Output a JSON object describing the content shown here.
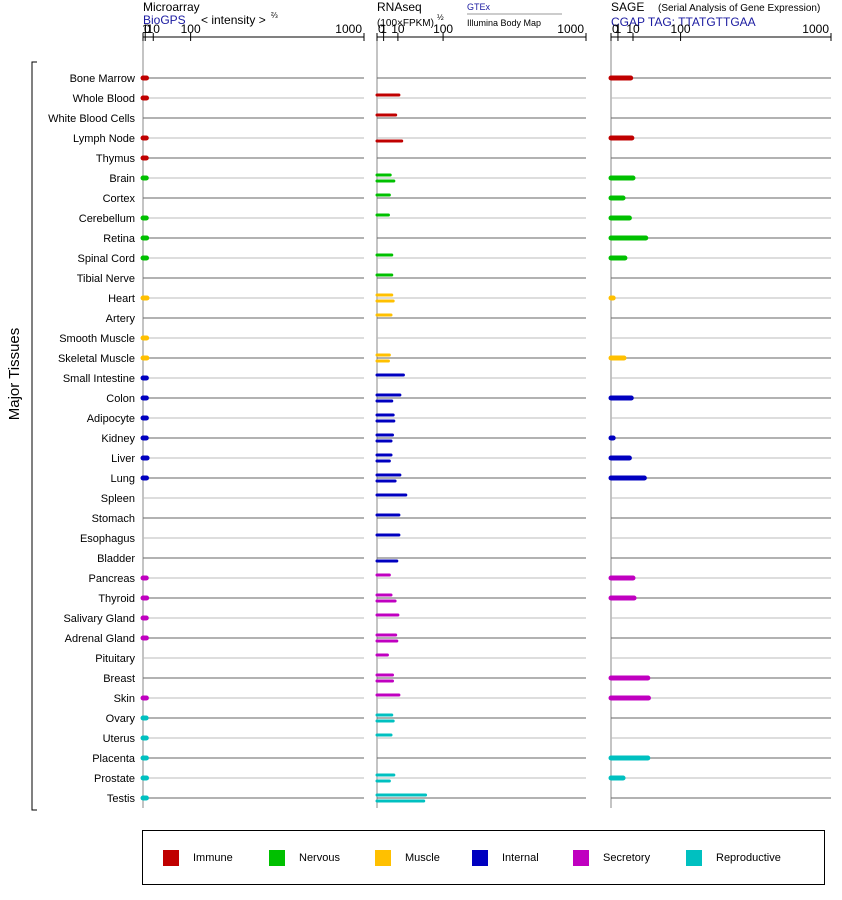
{
  "panels": {
    "microarray": {
      "title": "Microarray",
      "source": "BioGPS",
      "scale": "< intensity >",
      "scale_exp": "⅔"
    },
    "rnaseq": {
      "title": "RNAseq",
      "scale": "(100×FPKM)",
      "scale_exp": "½",
      "source1": "GTEx",
      "source2": "Illumina Body Map"
    },
    "sage": {
      "title": "SAGE",
      "subtitle": "(Serial Analysis of Gene Expression)",
      "tag": "CGAP TAG: TTATGTTGAA"
    }
  },
  "y_group_label": "Major Tissues",
  "colors": {
    "Immune": "#c00000",
    "Nervous": "#00c000",
    "Muscle": "#ffc000",
    "Internal": "#0000c0",
    "Secretory": "#c000c0",
    "Reproductive": "#00c0c0"
  },
  "legend": [
    "Immune",
    "Nervous",
    "Muscle",
    "Internal",
    "Secretory",
    "Reproductive"
  ],
  "chart_data": {
    "type": "bar",
    "orientation": "horizontal",
    "x_ticks": [
      "0",
      "1",
      "10",
      "100",
      "1000"
    ],
    "x_tick_values": [
      0,
      1,
      10,
      100,
      1000
    ],
    "xlim": [
      0,
      1000
    ],
    "grid": true,
    "categories": [
      "Bone Marrow",
      "Whole Blood",
      "White Blood Cells",
      "Lymph Node",
      "Thymus",
      "Brain",
      "Cortex",
      "Cerebellum",
      "Retina",
      "Spinal Cord",
      "Tibial Nerve",
      "Heart",
      "Artery",
      "Smooth Muscle",
      "Skeletal Muscle",
      "Small Intestine",
      "Colon",
      "Adipocyte",
      "Kidney",
      "Liver",
      "Lung",
      "Spleen",
      "Stomach",
      "Esophagus",
      "Bladder",
      "Pancreas",
      "Thyroid",
      "Salivary Gland",
      "Adrenal Gland",
      "Pituitary",
      "Breast",
      "Skin",
      "Ovary",
      "Uterus",
      "Placenta",
      "Prostate",
      "Testis"
    ],
    "groups": [
      "Immune",
      "Immune",
      "Immune",
      "Immune",
      "Immune",
      "Nervous",
      "Nervous",
      "Nervous",
      "Nervous",
      "Nervous",
      "Nervous",
      "Muscle",
      "Muscle",
      "Muscle",
      "Muscle",
      "Internal",
      "Internal",
      "Internal",
      "Internal",
      "Internal",
      "Internal",
      "Internal",
      "Internal",
      "Internal",
      "Internal",
      "Secretory",
      "Secretory",
      "Secretory",
      "Secretory",
      "Secretory",
      "Secretory",
      "Secretory",
      "Reproductive",
      "Reproductive",
      "Reproductive",
      "Reproductive",
      "Reproductive"
    ],
    "microarray": [
      2.0,
      2.0,
      null,
      1.8,
      1.8,
      1.8,
      null,
      1.8,
      2.1,
      2.0,
      null,
      2.4,
      null,
      2.1,
      2.3,
      1.9,
      1.9,
      1.9,
      1.8,
      2.5,
      2.0,
      null,
      null,
      null,
      null,
      1.8,
      2.1,
      1.8,
      1.9,
      null,
      null,
      1.9,
      1.7,
      1.8,
      1.9,
      2.0,
      1.9
    ],
    "rnaseq_gtex": [
      null,
      11,
      8,
      null,
      null,
      4,
      3.5,
      3,
      null,
      5,
      5,
      5,
      4.5,
      null,
      3.5,
      16,
      12,
      6,
      5.5,
      4.5,
      12,
      19,
      11,
      11,
      null,
      3.5,
      4.5,
      10,
      8,
      2.5,
      5.5,
      11,
      5,
      4.5,
      null,
      6.5,
      54
    ],
    "rnaseq_illumina": [
      null,
      null,
      null,
      14,
      null,
      6.5,
      null,
      null,
      null,
      null,
      null,
      6,
      null,
      null,
      3,
      null,
      5,
      6.5,
      4.5,
      3.5,
      7.5,
      null,
      null,
      null,
      9,
      null,
      7.5,
      null,
      9,
      null,
      5.5,
      null,
      6,
      null,
      null,
      3.5,
      50
    ],
    "sage": [
      8,
      null,
      null,
      9,
      null,
      10,
      3,
      7,
      25,
      4,
      null,
      0.1,
      null,
      null,
      3.5,
      null,
      8.5,
      null,
      0.1,
      7,
      23,
      null,
      null,
      null,
      null,
      10,
      11,
      null,
      null,
      null,
      28,
      29,
      null,
      null,
      28,
      3,
      null
    ]
  }
}
